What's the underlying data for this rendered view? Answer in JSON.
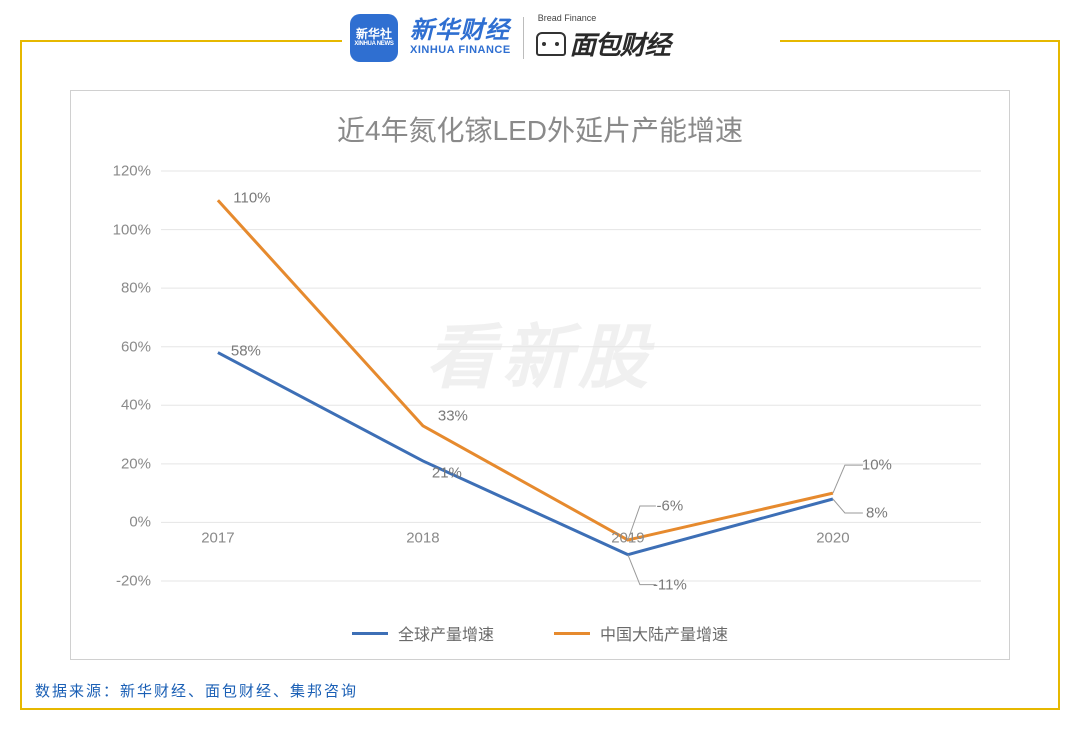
{
  "logos": {
    "xinhua_badge_cn": "新华社",
    "xinhua_badge_en": "XINHUA NEWS",
    "xinhua_cn": "新华财经",
    "xinhua_en": "XINHUA FINANCE",
    "bread_en": "Bread Finance",
    "bread_cn": "面包财经"
  },
  "chart": {
    "type": "line",
    "title": "近4年氮化镓LED外延片产能增速",
    "watermark": "看新股",
    "background_color": "#ffffff",
    "border_color": "#d0d0d0",
    "grid_color": "#e5e5e5",
    "axis_label_color": "#8a8a8a",
    "title_color": "#8a8a8a",
    "title_fontsize": 28,
    "axis_fontsize": 15,
    "x_categories": [
      "2017",
      "2018",
      "2019",
      "2020"
    ],
    "y": {
      "min": -20,
      "max": 120,
      "step": 20,
      "ticks": [
        "-20%",
        "0%",
        "20%",
        "40%",
        "60%",
        "80%",
        "100%",
        "120%"
      ],
      "tick_values": [
        -20,
        0,
        20,
        40,
        60,
        80,
        100,
        120
      ]
    },
    "x_axis_at_y": 0,
    "series": [
      {
        "name": "全球产量增速",
        "color": "#3d6fb6",
        "line_width": 3,
        "values": [
          58,
          21,
          -11,
          8
        ],
        "labels": [
          "58%",
          "21%",
          "-11%",
          "8%"
        ],
        "label_offsets": [
          {
            "dx": 28,
            "dy": -2
          },
          {
            "dx": 24,
            "dy": 12
          },
          {
            "dx": 42,
            "dy": 30,
            "leader": true
          },
          {
            "dx": 44,
            "dy": 14,
            "leader": true
          }
        ]
      },
      {
        "name": "中国大陆产量增速",
        "color": "#e68a2e",
        "line_width": 3,
        "values": [
          110,
          33,
          -6,
          10
        ],
        "labels": [
          "110%",
          "33%",
          "-6%",
          "10%"
        ],
        "label_offsets": [
          {
            "dx": 34,
            "dy": -2
          },
          {
            "dx": 30,
            "dy": -10
          },
          {
            "dx": 42,
            "dy": -34,
            "leader": true
          },
          {
            "dx": 44,
            "dy": -28,
            "leader": true
          }
        ]
      }
    ],
    "legend_position": "bottom-center"
  },
  "frame": {
    "border_color": "#e6b800"
  },
  "source_line": "数据来源：新华财经、面包财经、集邦咨询"
}
